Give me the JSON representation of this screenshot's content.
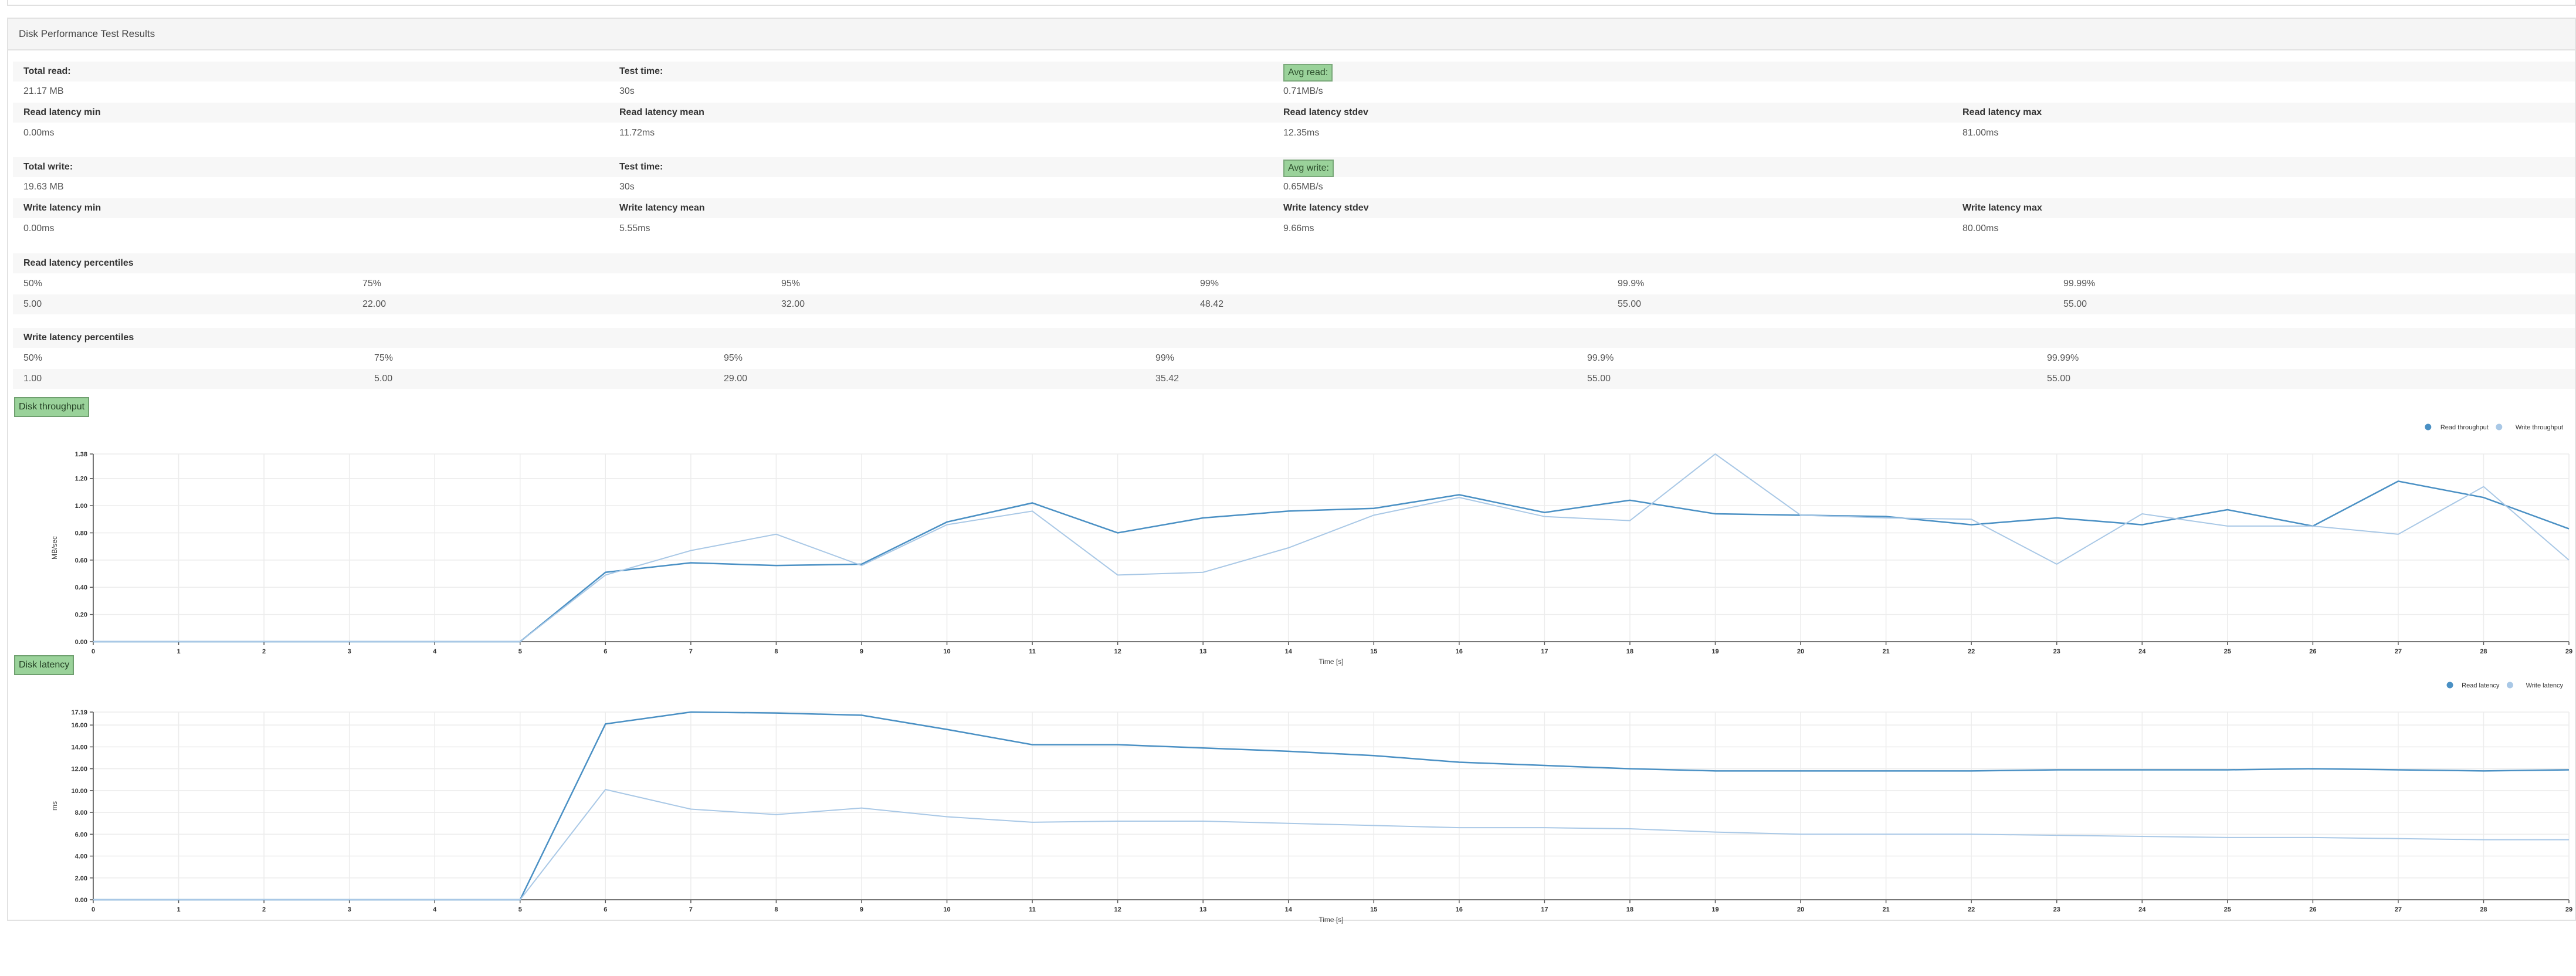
{
  "panel_title": "Disk Performance Test Results",
  "read_summary": {
    "total_label": "Total read:",
    "total_value": "21.17 MB",
    "time_label": "Test time:",
    "time_value": "30s",
    "avg_label": "Avg read:",
    "avg_value": "0.71MB/s"
  },
  "read_latency": {
    "min_label": "Read latency min",
    "min_value": "0.00ms",
    "mean_label": "Read latency mean",
    "mean_value": "11.72ms",
    "stdev_label": "Read latency stdev",
    "stdev_value": "12.35ms",
    "max_label": "Read latency max",
    "max_value": "81.00ms"
  },
  "write_summary": {
    "total_label": "Total write:",
    "total_value": "19.63 MB",
    "time_label": "Test time:",
    "time_value": "30s",
    "avg_label": "Avg write:",
    "avg_value": "0.65MB/s"
  },
  "write_latency": {
    "min_label": "Write latency min",
    "min_value": "0.00ms",
    "mean_label": "Write latency mean",
    "mean_value": "5.55ms",
    "stdev_label": "Write latency stdev",
    "stdev_value": "9.66ms",
    "max_label": "Write latency max",
    "max_value": "80.00ms"
  },
  "read_percentiles": {
    "title": "Read latency percentiles",
    "headers": [
      "50%",
      "75%",
      "95%",
      "99%",
      "99.9%",
      "99.99%"
    ],
    "values": [
      "5.00",
      "22.00",
      "32.00",
      "48.42",
      "55.00",
      "55.00"
    ]
  },
  "write_percentiles": {
    "title": "Write latency percentiles",
    "headers": [
      "50%",
      "75%",
      "95%",
      "99%",
      "99.9%",
      "99.99%"
    ],
    "values": [
      "1.00",
      "5.00",
      "29.00",
      "35.42",
      "55.00",
      "55.00"
    ]
  },
  "buttons": {
    "throughput": "Disk throughput",
    "latency": "Disk latency"
  },
  "colors": {
    "read": "#4a90c4",
    "write": "#a9c8e6",
    "badge": "#9ad29a"
  },
  "chart_data": [
    {
      "type": "line",
      "xlabel": "Time [s]",
      "ylabel": "MB/sec",
      "x": [
        0,
        1,
        2,
        3,
        4,
        5,
        6,
        7,
        8,
        9,
        10,
        11,
        12,
        13,
        14,
        15,
        16,
        17,
        18,
        19,
        20,
        21,
        22,
        23,
        24,
        25,
        26,
        27,
        28,
        29
      ],
      "xlim": [
        0,
        29
      ],
      "ylim": [
        0,
        1.38
      ],
      "yticks": [
        "0.00",
        "0.20",
        "0.40",
        "0.60",
        "0.80",
        "1.00",
        "1.20",
        "1.38"
      ],
      "legend_position": "top-right",
      "series": [
        {
          "name": "Read throughput",
          "values": [
            0,
            0,
            0,
            0,
            0,
            0,
            0.51,
            0.58,
            0.56,
            0.57,
            0.88,
            1.02,
            0.8,
            0.91,
            0.96,
            0.98,
            1.08,
            0.95,
            1.04,
            0.94,
            0.93,
            0.92,
            0.86,
            0.91,
            0.86,
            0.97,
            0.85,
            1.18,
            1.06,
            0.83
          ]
        },
        {
          "name": "Write throughput",
          "values": [
            0,
            0,
            0,
            0,
            0,
            0,
            0.49,
            0.67,
            0.79,
            0.56,
            0.86,
            0.96,
            0.49,
            0.51,
            0.69,
            0.93,
            1.06,
            0.92,
            0.89,
            1.38,
            0.93,
            0.91,
            0.9,
            0.57,
            0.94,
            0.85,
            0.85,
            0.79,
            1.14,
            0.6
          ]
        }
      ]
    },
    {
      "type": "line",
      "xlabel": "Time [s]",
      "ylabel": "ms",
      "x": [
        0,
        1,
        2,
        3,
        4,
        5,
        6,
        7,
        8,
        9,
        10,
        11,
        12,
        13,
        14,
        15,
        16,
        17,
        18,
        19,
        20,
        21,
        22,
        23,
        24,
        25,
        26,
        27,
        28,
        29
      ],
      "xlim": [
        0,
        29
      ],
      "ylim": [
        0,
        17.19
      ],
      "yticks": [
        "0.00",
        "2.00",
        "4.00",
        "6.00",
        "8.00",
        "10.00",
        "12.00",
        "14.00",
        "16.00",
        "17.19"
      ],
      "legend_position": "top-right",
      "series": [
        {
          "name": "Read latency",
          "values": [
            0,
            0,
            0,
            0,
            0,
            0,
            16.1,
            17.19,
            17.1,
            16.9,
            15.6,
            14.2,
            14.2,
            13.9,
            13.6,
            13.2,
            12.6,
            12.3,
            12.0,
            11.8,
            11.8,
            11.8,
            11.8,
            11.9,
            11.9,
            11.9,
            12.0,
            11.9,
            11.8,
            11.9
          ]
        },
        {
          "name": "Write latency",
          "values": [
            0,
            0,
            0,
            0,
            0,
            0,
            10.1,
            8.3,
            7.8,
            8.4,
            7.6,
            7.1,
            7.2,
            7.2,
            7.0,
            6.8,
            6.6,
            6.6,
            6.5,
            6.2,
            6.0,
            6.0,
            6.0,
            5.9,
            5.8,
            5.7,
            5.7,
            5.6,
            5.5,
            5.5
          ]
        }
      ]
    }
  ]
}
